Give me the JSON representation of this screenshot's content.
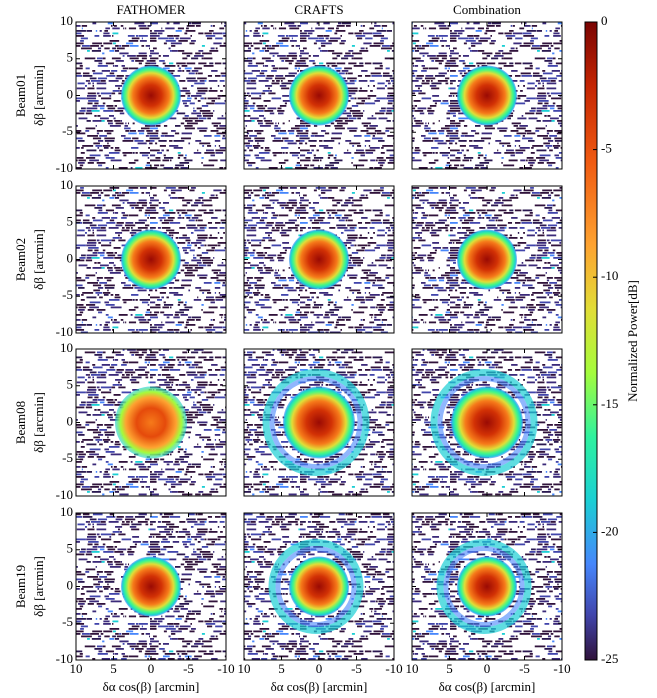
{
  "chart_data": {
    "type": "heatmap-grid",
    "columns": [
      "FATHOMER",
      "CRAFTS",
      "Combination"
    ],
    "rows": [
      "Beam01",
      "Beam02",
      "Beam08",
      "Beam19"
    ],
    "xlabel": "δα cos(β) [arcmin]",
    "ylabel": "δβ [arcmin]",
    "xlim": [
      10,
      -10
    ],
    "xticks": [
      10,
      5,
      0,
      -5,
      -10
    ],
    "ylim": [
      -10,
      10
    ],
    "yticks": [
      -10,
      -5,
      0,
      5,
      10
    ],
    "colorbar": {
      "label": "Normalized  Power[dB]",
      "lim": [
        -25,
        0
      ],
      "ticks": [
        0,
        -5,
        -10,
        -15,
        -20,
        -25
      ]
    }
  }
}
